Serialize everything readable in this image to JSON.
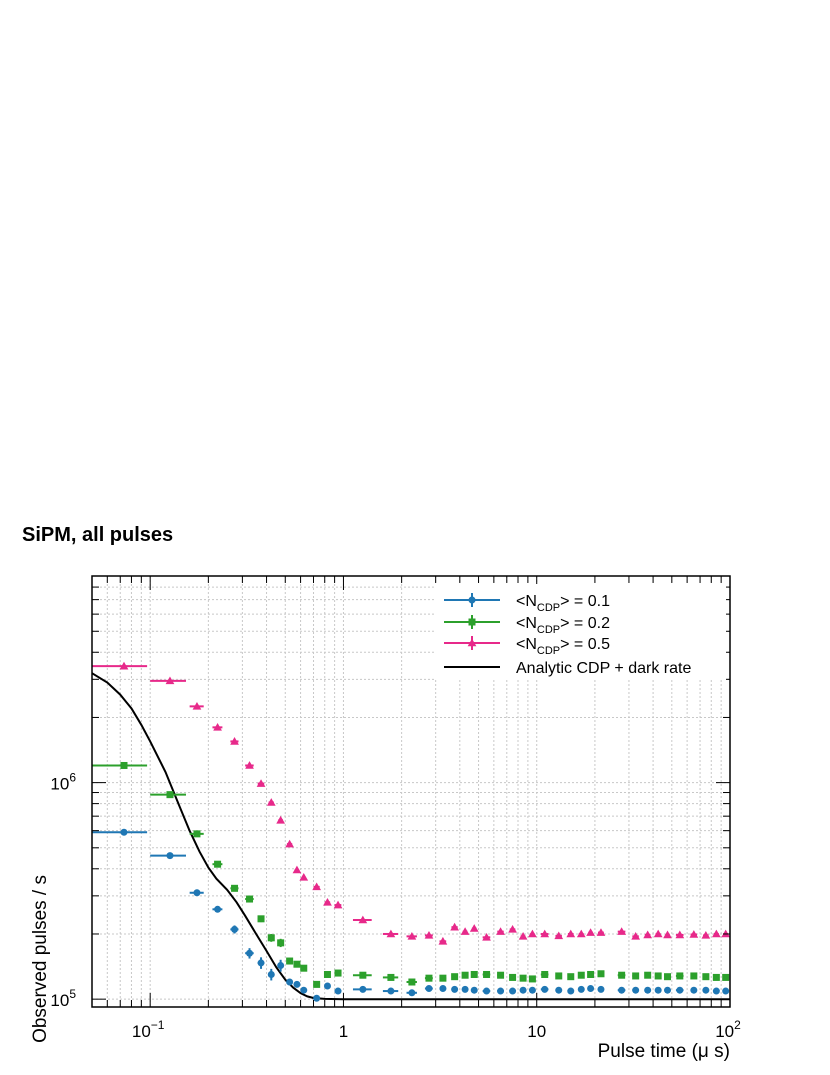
{
  "chart_data": {
    "type": "scatter",
    "title": "SiPM, all pulses",
    "xlabel": "Pulse time (μ s)",
    "ylabel": "Observed pulses / s",
    "x_scale": "log",
    "y_scale": "log",
    "xlim": [
      0.05,
      100
    ],
    "ylim": [
      92000,
      9000000
    ],
    "x_tick_labels": [
      {
        "value": 0.1,
        "base": "10",
        "exp": "−1"
      },
      {
        "value": 1,
        "base": "1",
        "exp": ""
      },
      {
        "value": 10,
        "base": "10",
        "exp": ""
      },
      {
        "value": 100,
        "base": "10",
        "exp": "2"
      }
    ],
    "y_tick_labels": [
      {
        "value": 100000,
        "base": "10",
        "exp": "5"
      },
      {
        "value": 1000000,
        "base": "10",
        "exp": "6"
      }
    ],
    "grid": true,
    "legend_position": "top-right",
    "series": [
      {
        "name": "<N_CDP> = 0.1",
        "legend_base": "<N",
        "legend_sub": "CDP",
        "legend_rest": "> = 0.1",
        "color": "#1f77b4",
        "marker": "circle",
        "points": [
          [
            0.0732,
            590000,
            0.0232,
            0
          ],
          [
            0.1266,
            460000,
            0.0266,
            0
          ],
          [
            0.1746,
            310000,
            0.0146,
            8000
          ],
          [
            0.2232,
            260000,
            0.0132,
            8000
          ],
          [
            0.2732,
            210000,
            0.0132,
            9000
          ],
          [
            0.3266,
            163000,
            0.0166,
            9000
          ],
          [
            0.3746,
            147000,
            0.0146,
            9000
          ],
          [
            0.4232,
            130000,
            0.0132,
            8000
          ],
          [
            0.4732,
            143000,
            0.0132,
            9000
          ],
          [
            0.5266,
            120000,
            0.0166,
            4000
          ],
          [
            0.5746,
            117000,
            0.0146,
            3500
          ],
          [
            0.6232,
            110000,
            0.0132,
            3000
          ],
          [
            0.7266,
            101000,
            0.0266,
            2500
          ],
          [
            0.8266,
            115000,
            0.0266,
            2500
          ],
          [
            0.9375,
            109000,
            0.0375,
            2000
          ],
          [
            1.26,
            111000,
            0.14,
            0
          ],
          [
            1.76,
            109000,
            0.16,
            0
          ],
          [
            2.26,
            107000,
            0.14,
            0
          ],
          [
            2.77,
            112000,
            0.13,
            0
          ],
          [
            3.27,
            112000,
            0.13,
            0
          ],
          [
            3.76,
            111000,
            0.14,
            0
          ],
          [
            4.26,
            111000,
            0.12,
            0
          ],
          [
            4.75,
            110000,
            0.13,
            0
          ],
          [
            5.5,
            109000,
            0.25,
            0
          ],
          [
            6.5,
            109000,
            0.25,
            0
          ],
          [
            7.5,
            109000,
            0.25,
            0
          ],
          [
            8.5,
            110000,
            0.25,
            0
          ],
          [
            9.5,
            110000,
            0.25,
            0
          ],
          [
            11,
            111000,
            0.5,
            0
          ],
          [
            13,
            110000,
            0.5,
            0
          ],
          [
            15,
            109000,
            0.5,
            0
          ],
          [
            17,
            111000,
            0.5,
            0
          ],
          [
            19,
            112000,
            0.5,
            0
          ],
          [
            21.5,
            111000,
            0.75,
            0
          ],
          [
            27.5,
            110000,
            1.25,
            0
          ],
          [
            32.5,
            110000,
            1.25,
            0
          ],
          [
            37.5,
            110000,
            1.25,
            0
          ],
          [
            42.5,
            110000,
            1.25,
            0
          ],
          [
            47.5,
            110000,
            1.25,
            0
          ],
          [
            55,
            110000,
            2.5,
            0
          ],
          [
            65,
            110000,
            2.5,
            0
          ],
          [
            75,
            110000,
            2.5,
            0
          ],
          [
            85,
            109000,
            2.5,
            0
          ],
          [
            95,
            109000,
            2.5,
            0
          ]
        ]
      },
      {
        "name": "<N_CDP> = 0.2",
        "legend_base": "<N",
        "legend_sub": "CDP",
        "legend_rest": "> = 0.2",
        "color": "#2ca02c",
        "marker": "square",
        "points": [
          [
            0.0732,
            1200000,
            0.0232,
            0
          ],
          [
            0.1266,
            880000,
            0.0266,
            0
          ],
          [
            0.1746,
            580000,
            0.0146,
            0
          ],
          [
            0.2232,
            420000,
            0.0132,
            0
          ],
          [
            0.2732,
            325000,
            0.0132,
            8000
          ],
          [
            0.3266,
            290000,
            0.0166,
            8000
          ],
          [
            0.3746,
            235000,
            0.0146,
            8000
          ],
          [
            0.4232,
            192000,
            0.0132,
            8000
          ],
          [
            0.4732,
            182000,
            0.0132,
            8000
          ],
          [
            0.5266,
            150000,
            0.0166,
            4000
          ],
          [
            0.5746,
            145000,
            0.0146,
            4000
          ],
          [
            0.6232,
            139000,
            0.0132,
            3500
          ],
          [
            0.7266,
            117000,
            0.0266,
            3000
          ],
          [
            0.8266,
            130000,
            0.0266,
            3000
          ],
          [
            0.9375,
            132000,
            0.0375,
            2500
          ],
          [
            1.26,
            129000,
            0.14,
            0
          ],
          [
            1.76,
            126000,
            0.16,
            0
          ],
          [
            2.26,
            120000,
            0.14,
            0
          ],
          [
            2.77,
            125000,
            0.13,
            0
          ],
          [
            3.27,
            125000,
            0.13,
            0
          ],
          [
            3.76,
            127000,
            0.14,
            0
          ],
          [
            4.26,
            129000,
            0.12,
            0
          ],
          [
            4.75,
            130000,
            0.13,
            0
          ],
          [
            5.5,
            130000,
            0.25,
            0
          ],
          [
            6.5,
            129000,
            0.25,
            0
          ],
          [
            7.5,
            126000,
            0.25,
            0
          ],
          [
            8.5,
            125000,
            0.25,
            0
          ],
          [
            9.5,
            124000,
            0.25,
            0
          ],
          [
            11,
            130000,
            0.5,
            0
          ],
          [
            13,
            128000,
            0.5,
            0
          ],
          [
            15,
            127000,
            0.5,
            0
          ],
          [
            17,
            129000,
            0.5,
            0
          ],
          [
            19,
            130000,
            0.5,
            0
          ],
          [
            21.5,
            131000,
            0.75,
            0
          ],
          [
            27.5,
            129000,
            1.25,
            0
          ],
          [
            32.5,
            128000,
            1.25,
            0
          ],
          [
            37.5,
            129000,
            1.25,
            0
          ],
          [
            42.5,
            128000,
            1.25,
            0
          ],
          [
            47.5,
            127000,
            1.25,
            0
          ],
          [
            55,
            128000,
            2.5,
            0
          ],
          [
            65,
            128000,
            2.5,
            0
          ],
          [
            75,
            127000,
            2.5,
            0
          ],
          [
            85,
            126000,
            2.5,
            0
          ],
          [
            95,
            126000,
            2.5,
            0
          ]
        ]
      },
      {
        "name": "<N_CDP> = 0.5",
        "legend_base": "<N",
        "legend_sub": "CDP",
        "legend_rest": "> = 0.5",
        "color": "#e7298a",
        "marker": "triangle",
        "points": [
          [
            0.0732,
            3450000,
            0.0232,
            0
          ],
          [
            0.1266,
            2950000,
            0.0266,
            0
          ],
          [
            0.1746,
            2250000,
            0.0146,
            0
          ],
          [
            0.2232,
            1800000,
            0.0132,
            0
          ],
          [
            0.2732,
            1550000,
            0.0132,
            0
          ],
          [
            0.3266,
            1200000,
            0.0166,
            0
          ],
          [
            0.3746,
            990000,
            0.0146,
            0
          ],
          [
            0.4232,
            810000,
            0.0132,
            0
          ],
          [
            0.4732,
            670000,
            0.0132,
            0
          ],
          [
            0.5266,
            520000,
            0.0166,
            0
          ],
          [
            0.5746,
            395000,
            0.0146,
            0
          ],
          [
            0.6232,
            365000,
            0.0132,
            0
          ],
          [
            0.7266,
            330000,
            0.0266,
            0
          ],
          [
            0.8266,
            280000,
            0.0266,
            0
          ],
          [
            0.9375,
            272000,
            0.0375,
            0
          ],
          [
            1.26,
            232000,
            0.14,
            0
          ],
          [
            1.76,
            200000,
            0.16,
            0
          ],
          [
            2.26,
            195000,
            0.14,
            0
          ],
          [
            2.77,
            197000,
            0.13,
            0
          ],
          [
            3.27,
            185000,
            0.13,
            0
          ],
          [
            3.76,
            215000,
            0.14,
            0
          ],
          [
            4.26,
            205000,
            0.12,
            0
          ],
          [
            4.75,
            212000,
            0.13,
            0
          ],
          [
            5.5,
            193000,
            0.25,
            0
          ],
          [
            6.5,
            205000,
            0.25,
            0
          ],
          [
            7.5,
            210000,
            0.25,
            0
          ],
          [
            8.5,
            195000,
            0.25,
            0
          ],
          [
            9.5,
            200000,
            0.25,
            0
          ],
          [
            11,
            200000,
            0.5,
            0
          ],
          [
            13,
            196000,
            0.5,
            0
          ],
          [
            15,
            200000,
            0.5,
            0
          ],
          [
            17,
            200000,
            0.5,
            0
          ],
          [
            19,
            203000,
            0.5,
            0
          ],
          [
            21.5,
            203000,
            0.75,
            0
          ],
          [
            27.5,
            205000,
            1.25,
            0
          ],
          [
            32.5,
            195000,
            1.25,
            0
          ],
          [
            37.5,
            198000,
            1.25,
            0
          ],
          [
            42.5,
            200000,
            1.25,
            0
          ],
          [
            47.5,
            198000,
            1.25,
            0
          ],
          [
            55,
            198000,
            2.5,
            0
          ],
          [
            65,
            199000,
            2.5,
            0
          ],
          [
            75,
            197000,
            2.5,
            0
          ],
          [
            85,
            200000,
            2.5,
            0
          ],
          [
            95,
            200000,
            2.5,
            0
          ]
        ]
      },
      {
        "name": "Analytic CDP + dark rate",
        "color": "#000000",
        "marker": "line",
        "points": [
          [
            0.05,
            3200000
          ],
          [
            0.06,
            2900000
          ],
          [
            0.07,
            2550000
          ],
          [
            0.08,
            2200000
          ],
          [
            0.09,
            1850000
          ],
          [
            0.1,
            1550000
          ],
          [
            0.12,
            1120000
          ],
          [
            0.14,
            800000
          ],
          [
            0.16,
            600000
          ],
          [
            0.18,
            480000
          ],
          [
            0.2,
            405000
          ],
          [
            0.22,
            360000
          ],
          [
            0.25,
            320000
          ],
          [
            0.28,
            280000
          ],
          [
            0.31,
            243000
          ],
          [
            0.35,
            203000
          ],
          [
            0.4,
            167000
          ],
          [
            0.45,
            140000
          ],
          [
            0.5,
            123000
          ],
          [
            0.55,
            113000
          ],
          [
            0.6,
            106500
          ],
          [
            0.65,
            103000
          ],
          [
            0.7,
            101200
          ],
          [
            0.8,
            100300
          ],
          [
            1,
            100000
          ],
          [
            100,
            100000
          ]
        ]
      }
    ]
  }
}
